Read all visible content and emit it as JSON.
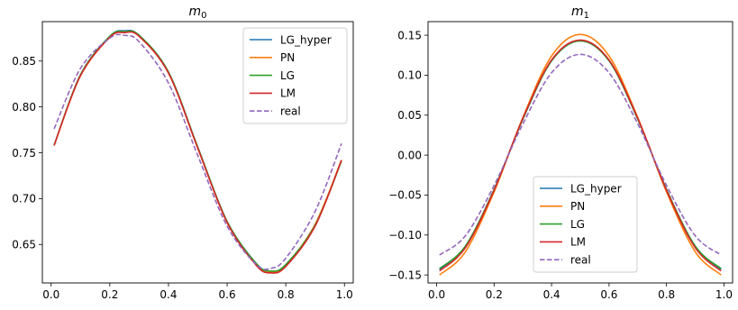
{
  "chart_data": [
    {
      "type": "line",
      "title_base": "m",
      "title_sub": "0",
      "xlim": [
        -0.03,
        1.03
      ],
      "ylim": [
        0.608,
        0.893
      ],
      "xticks": [
        0.0,
        0.2,
        0.4,
        0.6,
        0.8,
        1.0
      ],
      "xtick_labels": [
        "0.0",
        "0.2",
        "0.4",
        "0.6",
        "0.8",
        "1.0"
      ],
      "yticks": [
        0.65,
        0.7,
        0.75,
        0.8,
        0.85
      ],
      "ytick_labels": [
        "0.65",
        "0.70",
        "0.75",
        "0.80",
        "0.85"
      ],
      "legend_loc": "upper-right",
      "series": [
        {
          "name": "LG_hyper",
          "color": "#1f77b4",
          "style": "solid",
          "x": [
            0.01,
            0.1,
            0.2,
            0.25,
            0.3,
            0.4,
            0.5,
            0.6,
            0.7,
            0.75,
            0.8,
            0.9,
            0.99
          ],
          "y": [
            0.758,
            0.835,
            0.877,
            0.883,
            0.878,
            0.838,
            0.756,
            0.675,
            0.629,
            0.621,
            0.628,
            0.671,
            0.742
          ]
        },
        {
          "name": "PN",
          "color": "#ff7f0e",
          "style": "solid",
          "x": [
            0.01,
            0.1,
            0.2,
            0.25,
            0.3,
            0.4,
            0.5,
            0.6,
            0.7,
            0.75,
            0.8,
            0.9,
            0.99
          ],
          "y": [
            0.758,
            0.834,
            0.876,
            0.882,
            0.877,
            0.837,
            0.755,
            0.674,
            0.628,
            0.62,
            0.627,
            0.672,
            0.742
          ]
        },
        {
          "name": "LG",
          "color": "#2ca02c",
          "style": "solid",
          "x": [
            0.01,
            0.1,
            0.2,
            0.25,
            0.3,
            0.4,
            0.5,
            0.6,
            0.7,
            0.75,
            0.8,
            0.9,
            0.99
          ],
          "y": [
            0.758,
            0.835,
            0.877,
            0.882,
            0.878,
            0.838,
            0.756,
            0.675,
            0.629,
            0.621,
            0.628,
            0.671,
            0.741
          ]
        },
        {
          "name": "LM",
          "color": "#d62728",
          "style": "solid",
          "x": [
            0.01,
            0.1,
            0.2,
            0.25,
            0.3,
            0.4,
            0.5,
            0.6,
            0.7,
            0.75,
            0.8,
            0.9,
            0.99
          ],
          "y": [
            0.758,
            0.834,
            0.876,
            0.881,
            0.877,
            0.837,
            0.755,
            0.674,
            0.627,
            0.619,
            0.626,
            0.67,
            0.742
          ]
        },
        {
          "name": "real",
          "color": "#9467bd",
          "style": "dashed",
          "x": [
            0.01,
            0.1,
            0.2,
            0.25,
            0.3,
            0.4,
            0.5,
            0.6,
            0.7,
            0.75,
            0.8,
            0.9,
            0.99
          ],
          "y": [
            0.776,
            0.842,
            0.875,
            0.878,
            0.871,
            0.826,
            0.747,
            0.67,
            0.628,
            0.624,
            0.635,
            0.686,
            0.76
          ]
        }
      ]
    },
    {
      "type": "line",
      "title_base": "m",
      "title_sub": "1",
      "xlim": [
        -0.03,
        1.03
      ],
      "ylim": [
        -0.16,
        0.167
      ],
      "xticks": [
        0.0,
        0.2,
        0.4,
        0.6,
        0.8,
        1.0
      ],
      "xtick_labels": [
        "0.0",
        "0.2",
        "0.4",
        "0.6",
        "0.8",
        "1.0"
      ],
      "yticks": [
        -0.15,
        -0.1,
        -0.05,
        0.0,
        0.05,
        0.1,
        0.15
      ],
      "ytick_labels": [
        "−0.15",
        "−0.10",
        "−0.05",
        "0.00",
        "0.05",
        "0.10",
        "0.15"
      ],
      "legend_loc": "lower-center",
      "series": [
        {
          "name": "LG_hyper",
          "color": "#1f77b4",
          "style": "solid",
          "x": [
            0.01,
            0.1,
            0.2,
            0.3,
            0.4,
            0.5,
            0.6,
            0.7,
            0.8,
            0.9,
            0.99
          ],
          "y": [
            -0.143,
            -0.114,
            -0.043,
            0.045,
            0.118,
            0.143,
            0.118,
            0.045,
            -0.043,
            -0.114,
            -0.143
          ]
        },
        {
          "name": "PN",
          "color": "#ff7f0e",
          "style": "solid",
          "x": [
            0.01,
            0.1,
            0.2,
            0.3,
            0.4,
            0.5,
            0.6,
            0.7,
            0.8,
            0.9,
            0.99
          ],
          "y": [
            -0.15,
            -0.121,
            -0.046,
            0.047,
            0.124,
            0.151,
            0.124,
            0.047,
            -0.046,
            -0.121,
            -0.15
          ]
        },
        {
          "name": "LG",
          "color": "#2ca02c",
          "style": "solid",
          "x": [
            0.01,
            0.1,
            0.2,
            0.3,
            0.4,
            0.5,
            0.6,
            0.7,
            0.8,
            0.9,
            0.99
          ],
          "y": [
            -0.142,
            -0.114,
            -0.043,
            0.045,
            0.118,
            0.143,
            0.118,
            0.045,
            -0.043,
            -0.114,
            -0.142
          ]
        },
        {
          "name": "LM",
          "color": "#d62728",
          "style": "solid",
          "x": [
            0.01,
            0.1,
            0.2,
            0.3,
            0.4,
            0.5,
            0.6,
            0.7,
            0.8,
            0.9,
            0.99
          ],
          "y": [
            -0.145,
            -0.116,
            -0.044,
            0.046,
            0.119,
            0.144,
            0.119,
            0.046,
            -0.044,
            -0.116,
            -0.145
          ]
        },
        {
          "name": "real",
          "color": "#9467bd",
          "style": "dashed",
          "x": [
            0.01,
            0.1,
            0.2,
            0.3,
            0.4,
            0.5,
            0.6,
            0.7,
            0.8,
            0.9,
            0.99
          ],
          "y": [
            -0.125,
            -0.101,
            -0.038,
            0.039,
            0.103,
            0.126,
            0.103,
            0.039,
            -0.038,
            -0.101,
            -0.125
          ]
        }
      ]
    }
  ]
}
